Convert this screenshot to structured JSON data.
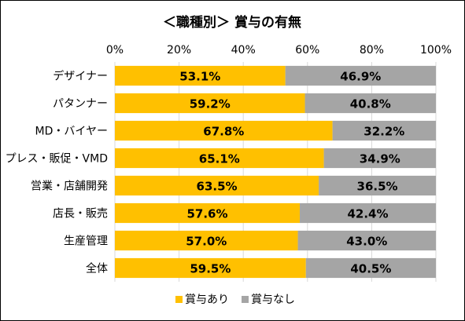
{
  "chart_data": {
    "type": "bar",
    "orientation": "horizontal",
    "stacked": true,
    "title": "＜職種別＞ 賞与の有無",
    "categories": [
      "デザイナー",
      "パタンナー",
      "MD・バイヤー",
      "プレス・販促・VMD",
      "営業・店舗開発",
      "店長・販売",
      "生産管理",
      "全体"
    ],
    "series": [
      {
        "name": "賞与あり",
        "color": "#FFC000",
        "values": [
          53.1,
          59.2,
          67.8,
          65.1,
          63.5,
          57.6,
          57.0,
          59.5
        ],
        "labels": [
          "53.1%",
          "59.2%",
          "67.8%",
          "65.1%",
          "63.5%",
          "57.6%",
          "57.0%",
          "59.5%"
        ]
      },
      {
        "name": "賞与なし",
        "color": "#A5A5A5",
        "values": [
          46.9,
          40.8,
          32.2,
          34.9,
          36.5,
          42.4,
          43.0,
          40.5
        ],
        "labels": [
          "46.9%",
          "40.8%",
          "32.2%",
          "34.9%",
          "36.5%",
          "42.4%",
          "43.0%",
          "40.5%"
        ]
      }
    ],
    "xlim": [
      0,
      100
    ],
    "xticks": [
      "0%",
      "20%",
      "40%",
      "60%",
      "80%",
      "100%"
    ],
    "xaxis_position": "top",
    "grid": true,
    "legend": "bottom"
  }
}
